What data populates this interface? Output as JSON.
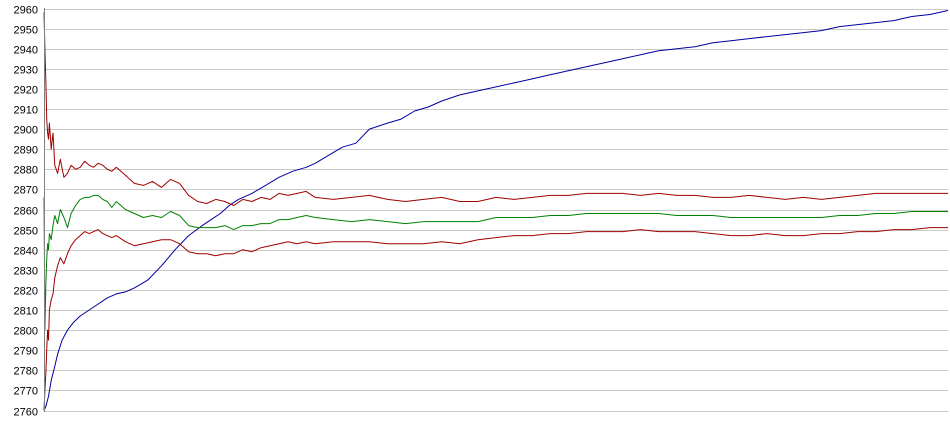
{
  "chart_data": {
    "type": "line",
    "title": "",
    "xlabel": "",
    "ylabel": "",
    "ylim": [
      2760,
      2960
    ],
    "xlim": [
      0,
      1000
    ],
    "y_ticks": [
      2760,
      2770,
      2780,
      2790,
      2800,
      2810,
      2820,
      2830,
      2840,
      2850,
      2860,
      2870,
      2880,
      2890,
      2900,
      2910,
      2920,
      2930,
      2940,
      2950,
      2960
    ],
    "grid": true,
    "legend": "none",
    "series": [
      {
        "color": "#0000a0",
        "x": [
          0,
          2,
          5,
          8,
          12,
          15,
          20,
          26,
          33,
          40,
          50,
          60,
          70,
          80,
          90,
          100,
          115,
          130,
          145,
          160,
          175,
          185,
          195,
          205,
          215,
          230,
          245,
          260,
          275,
          290,
          300,
          315,
          330,
          345,
          360,
          380,
          395,
          410,
          425,
          440,
          460,
          480,
          500,
          520,
          540,
          560,
          580,
          600,
          620,
          640,
          660,
          680,
          700,
          720,
          740,
          760,
          780,
          800,
          820,
          840,
          860,
          880,
          900,
          920,
          940,
          960,
          980,
          1000
        ],
        "values": [
          2760,
          2762,
          2767,
          2775,
          2782,
          2788,
          2795,
          2800,
          2804,
          2807,
          2810,
          2813,
          2816,
          2818,
          2819,
          2821,
          2825,
          2832,
          2840,
          2847,
          2852,
          2855,
          2858,
          2862,
          2865,
          2868,
          2872,
          2876,
          2879,
          2881,
          2883,
          2887,
          2891,
          2893,
          2900,
          2903,
          2905,
          2909,
          2911,
          2914,
          2917,
          2919,
          2921,
          2923,
          2925,
          2927,
          2929,
          2931,
          2933,
          2935,
          2937,
          2939,
          2940,
          2941,
          2943,
          2944,
          2945,
          2946,
          2947,
          2948,
          2949,
          2951,
          2952,
          2953,
          2954,
          2956,
          2957,
          2959
        ]
      },
      {
        "color": "#a00000",
        "x": [
          0,
          1,
          2,
          3,
          4,
          5,
          6,
          8,
          10,
          12,
          15,
          18,
          22,
          26,
          30,
          35,
          40,
          45,
          50,
          55,
          60,
          65,
          70,
          75,
          80,
          90,
          100,
          110,
          120,
          130,
          140,
          150,
          160,
          170,
          180,
          190,
          200,
          210,
          220,
          230,
          240,
          250,
          260,
          270,
          280,
          290,
          300,
          320,
          340,
          360,
          380,
          400,
          420,
          440,
          460,
          480,
          500,
          520,
          540,
          560,
          580,
          600,
          620,
          640,
          660,
          680,
          700,
          720,
          740,
          760,
          780,
          800,
          820,
          840,
          860,
          880,
          900,
          920,
          940,
          960,
          980,
          1000
        ],
        "values": [
          2958,
          2940,
          2925,
          2905,
          2898,
          2895,
          2903,
          2890,
          2898,
          2882,
          2878,
          2885,
          2876,
          2878,
          2882,
          2880,
          2881,
          2884,
          2882,
          2881,
          2883,
          2882,
          2880,
          2879,
          2881,
          2877,
          2873,
          2872,
          2874,
          2871,
          2875,
          2873,
          2867,
          2864,
          2863,
          2865,
          2864,
          2862,
          2865,
          2864,
          2866,
          2865,
          2868,
          2867,
          2868,
          2869,
          2866,
          2865,
          2866,
          2867,
          2865,
          2864,
          2865,
          2866,
          2864,
          2864,
          2866,
          2865,
          2866,
          2867,
          2867,
          2868,
          2868,
          2868,
          2867,
          2868,
          2867,
          2867,
          2866,
          2866,
          2867,
          2866,
          2865,
          2866,
          2865,
          2866,
          2867,
          2868,
          2868,
          2868,
          2868,
          2868
        ]
      },
      {
        "color": "#008000",
        "x": [
          0,
          1,
          2,
          3,
          4,
          5,
          6,
          8,
          10,
          12,
          15,
          18,
          22,
          26,
          30,
          35,
          40,
          45,
          50,
          55,
          60,
          65,
          70,
          75,
          80,
          90,
          100,
          110,
          120,
          130,
          140,
          150,
          160,
          170,
          180,
          190,
          200,
          210,
          220,
          230,
          240,
          250,
          260,
          270,
          280,
          290,
          300,
          320,
          340,
          360,
          380,
          400,
          420,
          440,
          460,
          480,
          500,
          520,
          540,
          560,
          580,
          600,
          620,
          640,
          660,
          680,
          700,
          720,
          740,
          760,
          780,
          800,
          820,
          840,
          860,
          880,
          900,
          920,
          940,
          960,
          980,
          1000
        ],
        "values": [
          2866,
          2800,
          2822,
          2835,
          2843,
          2840,
          2848,
          2845,
          2852,
          2857,
          2853,
          2860,
          2856,
          2851,
          2858,
          2862,
          2865,
          2866,
          2866,
          2867,
          2867,
          2865,
          2864,
          2861,
          2864,
          2860,
          2858,
          2856,
          2857,
          2856,
          2859,
          2857,
          2852,
          2851,
          2851,
          2851,
          2852,
          2850,
          2852,
          2852,
          2853,
          2853,
          2855,
          2855,
          2856,
          2857,
          2856,
          2855,
          2854,
          2855,
          2854,
          2853,
          2854,
          2854,
          2854,
          2854,
          2856,
          2856,
          2856,
          2857,
          2857,
          2858,
          2858,
          2858,
          2858,
          2858,
          2857,
          2857,
          2857,
          2856,
          2856,
          2856,
          2856,
          2856,
          2856,
          2857,
          2857,
          2858,
          2858,
          2859,
          2859,
          2859
        ]
      },
      {
        "color": "#a00000",
        "x": [
          0,
          1,
          2,
          3,
          4,
          5,
          6,
          8,
          10,
          12,
          15,
          18,
          22,
          26,
          30,
          35,
          40,
          45,
          50,
          55,
          60,
          65,
          70,
          75,
          80,
          90,
          100,
          110,
          120,
          130,
          140,
          150,
          160,
          170,
          180,
          190,
          200,
          210,
          220,
          230,
          240,
          250,
          260,
          270,
          280,
          290,
          300,
          320,
          340,
          360,
          380,
          400,
          420,
          440,
          460,
          480,
          500,
          520,
          540,
          560,
          580,
          600,
          620,
          640,
          660,
          680,
          700,
          720,
          740,
          760,
          780,
          800,
          820,
          840,
          860,
          880,
          900,
          920,
          940,
          960,
          980,
          1000
        ],
        "values": [
          2760,
          2770,
          2778,
          2790,
          2800,
          2795,
          2810,
          2815,
          2818,
          2826,
          2832,
          2836,
          2833,
          2838,
          2842,
          2845,
          2847,
          2849,
          2848,
          2849,
          2850,
          2848,
          2847,
          2846,
          2847,
          2844,
          2842,
          2843,
          2844,
          2845,
          2845,
          2843,
          2839,
          2838,
          2838,
          2837,
          2838,
          2838,
          2840,
          2839,
          2841,
          2842,
          2843,
          2844,
          2843,
          2844,
          2843,
          2844,
          2844,
          2844,
          2843,
          2843,
          2843,
          2844,
          2843,
          2845,
          2846,
          2847,
          2847,
          2848,
          2848,
          2849,
          2849,
          2849,
          2850,
          2849,
          2849,
          2849,
          2848,
          2847,
          2847,
          2848,
          2847,
          2847,
          2848,
          2848,
          2849,
          2849,
          2850,
          2850,
          2851,
          2851
        ]
      }
    ]
  }
}
